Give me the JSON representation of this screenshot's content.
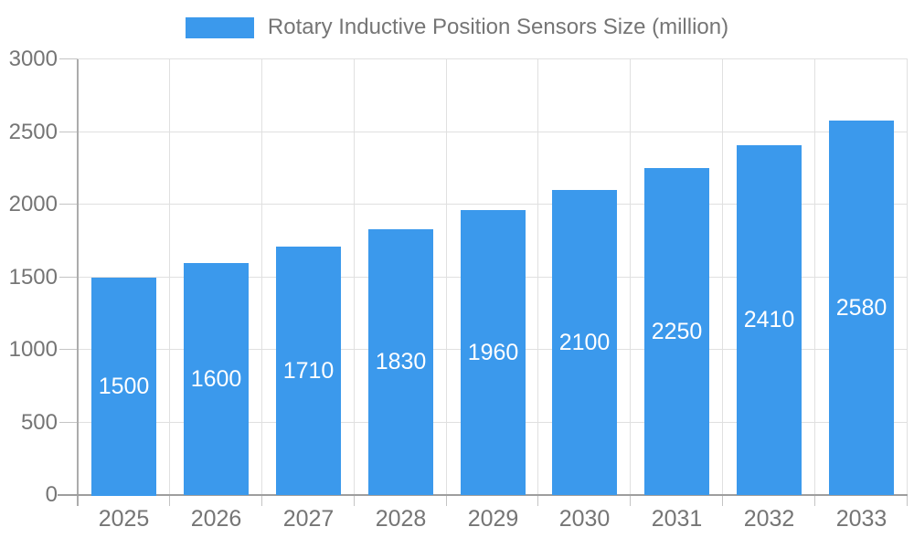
{
  "legend": {
    "label": "Rotary Inductive Position Sensors Size (million)"
  },
  "chart_data": {
    "type": "bar",
    "title": "Rotary Inductive Position Sensors Size (million)",
    "series_name": "Rotary Inductive Position Sensors Size (million)",
    "categories": [
      "2025",
      "2026",
      "2027",
      "2028",
      "2029",
      "2030",
      "2031",
      "2032",
      "2033"
    ],
    "values": [
      1500,
      1600,
      1710,
      1830,
      1960,
      2100,
      2250,
      2410,
      2580
    ],
    "xlabel": "",
    "ylabel": "",
    "ylim": [
      0,
      3000
    ],
    "yticks": [
      0,
      500,
      1000,
      1500,
      2000,
      2500,
      3000
    ],
    "grid": true,
    "legend_position": "top",
    "bar_value_labels_visible": true
  },
  "colors": {
    "bar": "#3B99EC",
    "bar_label": "#FFFFFF",
    "grid_line": "#E0E0E0",
    "axis_line_bottom": "#9E9E9E",
    "axis_line_left": "#ACACAC",
    "tick_mark": "#C4C4C4",
    "axis_label": "#757575",
    "legend_text": "#757575",
    "background": "#FFFFFF"
  }
}
